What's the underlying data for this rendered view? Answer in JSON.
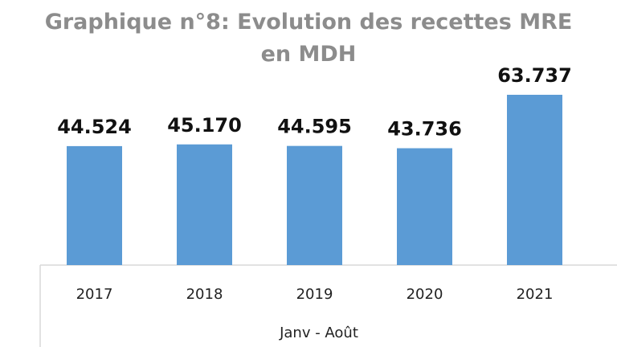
{
  "chart_data": {
    "type": "bar",
    "title_line1": "Graphique n°8: Evolution des recettes MRE",
    "title_line2": "en MDH",
    "categories": [
      "2017",
      "2018",
      "2019",
      "2020",
      "2021"
    ],
    "values": [
      44.524,
      45.17,
      44.595,
      43.736,
      63.737
    ],
    "data_labels": [
      "44.524",
      "45.170",
      "44.595",
      "43.736",
      "63.737"
    ],
    "xlabel": "Janv - Août",
    "ylabel": "",
    "ylim": [
      0,
      70
    ],
    "grid": false,
    "bar_color": "#5b9bd5"
  }
}
